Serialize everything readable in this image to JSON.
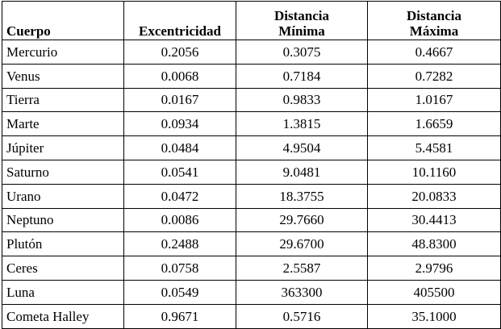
{
  "table": {
    "headers": {
      "name": "Cuerpo",
      "eccentricity": "Excentricidad",
      "min_line1": "Distancia",
      "min_line2": "Mínima",
      "max_line1": "Distancia",
      "max_line2": "Máxima"
    },
    "rows": [
      {
        "name": "Mercurio",
        "ecc": "0.2056",
        "min": "0.3075",
        "max": "0.4667"
      },
      {
        "name": "Venus",
        "ecc": "0.0068",
        "min": "0.7184",
        "max": "0.7282"
      },
      {
        "name": "Tierra",
        "ecc": "0.0167",
        "min": "0.9833",
        "max": "1.0167"
      },
      {
        "name": "Marte",
        "ecc": "0.0934",
        "min": "1.3815",
        "max": "1.6659"
      },
      {
        "name": "Júpiter",
        "ecc": "0.0484",
        "min": "4.9504",
        "max": "5.4581"
      },
      {
        "name": "Saturno",
        "ecc": "0.0541",
        "min": "9.0481",
        "max": "10.1160"
      },
      {
        "name": "Urano",
        "ecc": "0.0472",
        "min": "18.3755",
        "max": "20.0833"
      },
      {
        "name": "Neptuno",
        "ecc": "0.0086",
        "min": "29.7660",
        "max": "30.4413"
      },
      {
        "name": "Plutón",
        "ecc": "0.2488",
        "min": "29.6700",
        "max": "48.8300"
      },
      {
        "name": "Ceres",
        "ecc": "0.0758",
        "min": "2.5587",
        "max": "2.9796"
      },
      {
        "name": "Luna",
        "ecc": "0.0549",
        "min": "363300",
        "max": "405500"
      },
      {
        "name": "Cometa Halley",
        "ecc": "0.9671",
        "min": "0.5716",
        "max": "35.1000"
      }
    ]
  }
}
